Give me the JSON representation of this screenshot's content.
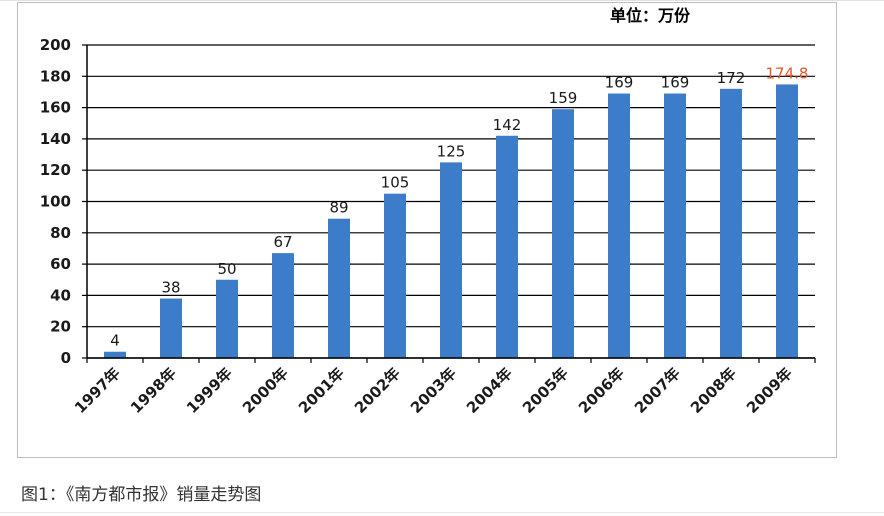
{
  "unit_label": "单位：万份",
  "caption": "图1：《南方都市报》销量走势图",
  "chart_data": {
    "type": "bar",
    "title": "",
    "xlabel": "",
    "ylabel": "",
    "ylim": [
      0,
      200
    ],
    "yticks": [
      0,
      20,
      40,
      60,
      80,
      100,
      120,
      140,
      160,
      180,
      200
    ],
    "grid": true,
    "categories": [
      "1997年",
      "1998年",
      "1999年",
      "2000年",
      "2001年",
      "2002年",
      "2003年",
      "2004年",
      "2005年",
      "2006年",
      "2007年",
      "2008年",
      "2009年"
    ],
    "values": [
      4,
      38,
      50,
      67,
      89,
      105,
      125,
      142,
      159,
      169,
      169,
      172,
      174.8
    ],
    "data_labels": [
      "4",
      "38",
      "50",
      "67",
      "89",
      "105",
      "125",
      "142",
      "159",
      "169",
      "169",
      "172",
      "174.8"
    ],
    "bar_color": "#3d7cc9",
    "label_color": "#1a1a1a",
    "highlight_label_color": "#e4572e",
    "highlight_index": 12
  }
}
